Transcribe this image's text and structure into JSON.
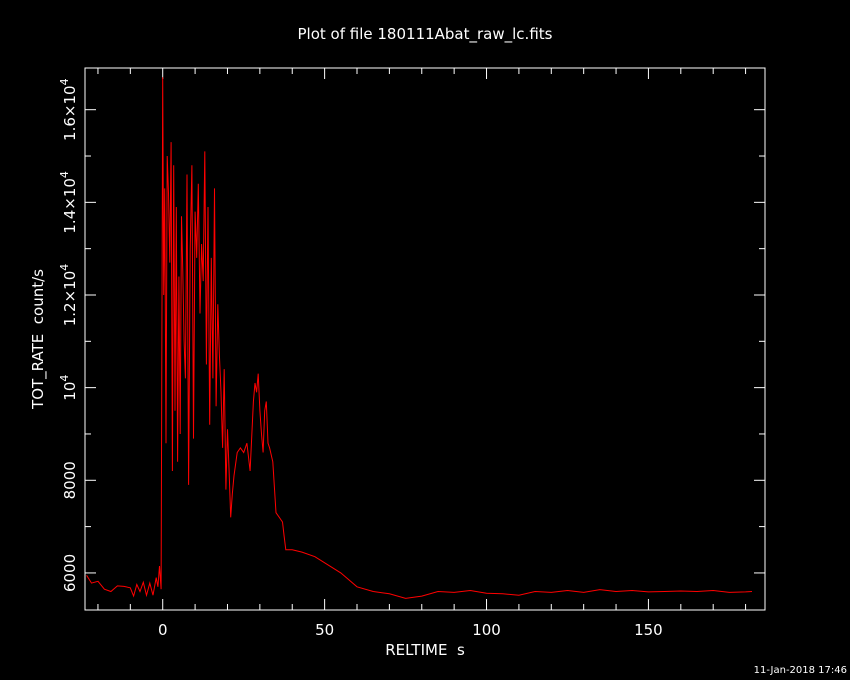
{
  "chart_data": {
    "type": "line",
    "title": "Plot of file 180111Abat_raw_lc.fits",
    "xlabel": "RELTIME  s",
    "ylabel": "TOT_RATE  count/s",
    "timestamp": "11-Jan-2018 17:46",
    "xlim": [
      -24,
      186
    ],
    "ylim": [
      5200,
      16900
    ],
    "x_ticks": [
      {
        "value": 0,
        "label": "0"
      },
      {
        "value": 50,
        "label": "50"
      },
      {
        "value": 100,
        "label": "100"
      },
      {
        "value": 150,
        "label": "150"
      }
    ],
    "y_ticks": [
      {
        "value": 6000,
        "label": "6000"
      },
      {
        "value": 8000,
        "label": "8000"
      },
      {
        "value": 10000,
        "mant": "",
        "base": "10",
        "exp": "4"
      },
      {
        "value": 12000,
        "mant": "1.2×",
        "base": "10",
        "exp": "4"
      },
      {
        "value": 14000,
        "mant": "1.4×",
        "base": "10",
        "exp": "4"
      },
      {
        "value": 16000,
        "mant": "1.6×",
        "base": "10",
        "exp": "4"
      }
    ],
    "colors": {
      "background": "#000000",
      "axes": "#ffffff",
      "line": "#ff0000"
    },
    "series": [
      {
        "color": "#ff0000",
        "x": [
          -23.5,
          -22,
          -20,
          -18,
          -16,
          -14,
          -12,
          -10,
          -9,
          -8,
          -7,
          -6,
          -5,
          -4,
          -3,
          -2,
          -1.5,
          -1,
          -0.5,
          0,
          0.3,
          0.6,
          1,
          1.4,
          1.8,
          2.2,
          2.6,
          3,
          3.4,
          3.8,
          4.2,
          4.6,
          5,
          5.4,
          5.8,
          6.2,
          6.6,
          7,
          7.5,
          8,
          8.5,
          9,
          9.5,
          10,
          10.5,
          11,
          11.5,
          12,
          12.5,
          13,
          13.5,
          14,
          14.5,
          15,
          15.5,
          16,
          16.5,
          17,
          17.5,
          18,
          18.5,
          19,
          19.5,
          20,
          20.5,
          21,
          21.5,
          22,
          23,
          24,
          25,
          26,
          27,
          28,
          28.5,
          29,
          29.5,
          30,
          30.5,
          31,
          31.5,
          32,
          32.5,
          33,
          34,
          35,
          36,
          37,
          37.5,
          38,
          40,
          43,
          47,
          55,
          60,
          65,
          70,
          75,
          80,
          85,
          90,
          95,
          100,
          105,
          110,
          115,
          120,
          125,
          130,
          135,
          140,
          145,
          150,
          155,
          160,
          165,
          170,
          175,
          180,
          182
        ],
        "y": [
          5950,
          5780,
          5820,
          5650,
          5600,
          5720,
          5710,
          5680,
          5500,
          5750,
          5600,
          5800,
          5520,
          5780,
          5520,
          5900,
          5700,
          6150,
          5650,
          16700,
          12000,
          14300,
          8800,
          15000,
          14200,
          12700,
          15300,
          8200,
          14800,
          9500,
          13900,
          8400,
          12400,
          9000,
          13700,
          12500,
          11000,
          10200,
          14600,
          7900,
          13000,
          14800,
          8900,
          13800,
          12800,
          14400,
          11600,
          13100,
          12300,
          15100,
          10500,
          13900,
          9200,
          12800,
          10200,
          14300,
          9600,
          11800,
          10700,
          9900,
          8700,
          10400,
          7800,
          9100,
          8200,
          7200,
          7700,
          8100,
          8600,
          8700,
          8600,
          8800,
          8200,
          9700,
          10100,
          9900,
          10300,
          9500,
          9000,
          8600,
          9500,
          9700,
          8800,
          8700,
          8400,
          7300,
          7200,
          7100,
          6800,
          6500,
          6500,
          6450,
          6350,
          6000,
          5700,
          5600,
          5550,
          5450,
          5500,
          5600,
          5580,
          5620,
          5560,
          5550,
          5520,
          5600,
          5580,
          5620,
          5580,
          5640,
          5600,
          5620,
          5590,
          5600,
          5610,
          5600,
          5620,
          5580,
          5590,
          5600
        ]
      }
    ]
  }
}
